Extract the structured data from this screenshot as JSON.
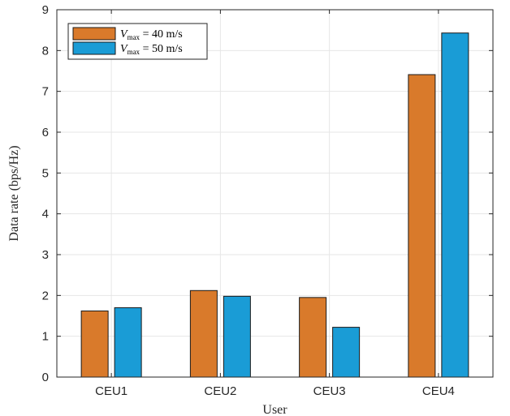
{
  "chart_data": {
    "type": "bar",
    "categories": [
      "CEU1",
      "CEU2",
      "CEU3",
      "CEU4"
    ],
    "series": [
      {
        "name": "V_max = 40 m/s",
        "color": "#D97A2B",
        "values": [
          1.62,
          2.12,
          1.95,
          7.41
        ]
      },
      {
        "name": "V_max = 50 m/s",
        "color": "#1A9CD6",
        "values": [
          1.7,
          1.98,
          1.22,
          8.43
        ]
      }
    ],
    "legend": {
      "entries": [
        {
          "symbol": "V",
          "sub": "max",
          "rest": " = 40 m/s"
        },
        {
          "symbol": "V",
          "sub": "max",
          "rest": " = 50 m/s"
        }
      ],
      "placement": "top-left"
    },
    "title": "",
    "xlabel": "User",
    "ylabel": "Data rate (bps/Hz)",
    "ylim": [
      0,
      9
    ],
    "yticks": [
      0,
      1,
      2,
      3,
      4,
      5,
      6,
      7,
      8,
      9
    ],
    "grid": true
  }
}
